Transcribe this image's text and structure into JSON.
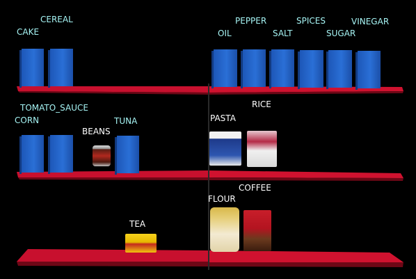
{
  "labels": {
    "cake": "CAKE",
    "cereal": "CEREAL",
    "oil": "OIL",
    "pepper": "PEPPER",
    "salt": "SALT",
    "spices": "SPICES",
    "sugar": "SUGAR",
    "vinegar": "VINEGAR",
    "tomato_sauce": "TOMATO_SAUCE",
    "corn": "CORN",
    "beans": "BEANS",
    "tuna": "TUNA",
    "pasta": "PASTA",
    "rice": "RICE",
    "coffee": "COFFEE",
    "flour": "FLOUR",
    "tea": "TEA"
  },
  "colors": {
    "background": "#000000",
    "shelf": "#c8102e",
    "placeholder_box": "#2a6fd6",
    "label_cyan": "#a6f4f4",
    "label_white": "#ffffff"
  }
}
